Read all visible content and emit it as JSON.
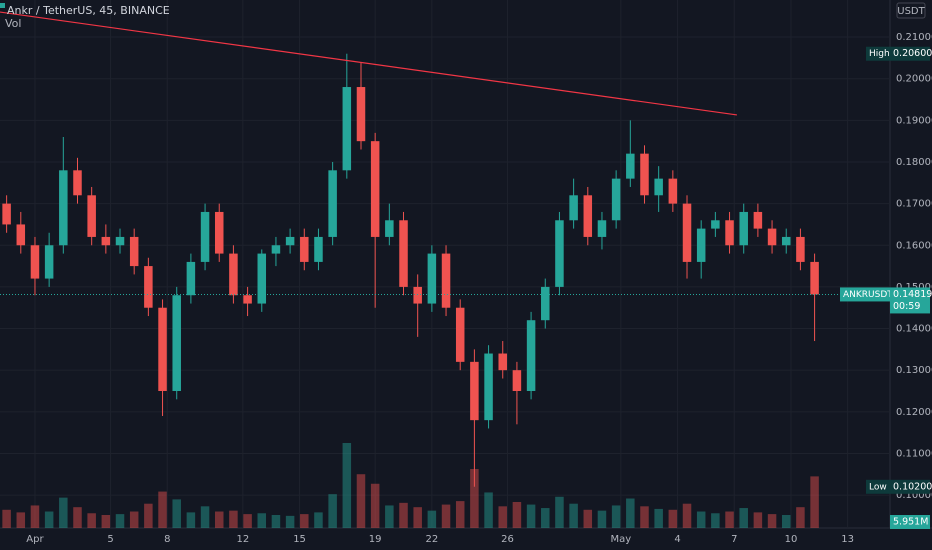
{
  "chart_data": {
    "type": "candlestick",
    "title": "Ankr / TetherUS, 45, BINANCE",
    "volume_title": "Vol",
    "currency": "USDT",
    "up_color": "#26a69a",
    "down_color": "#ef5350",
    "xlim": [
      -0.85,
      46.24
    ],
    "ylim": [
      0.0921,
      0.2189
    ],
    "xticks": [
      {
        "value": 1,
        "label": "Apr"
      },
      5,
      8,
      12,
      15,
      19,
      22,
      26,
      {
        "value": 32,
        "label": "May"
      },
      {
        "value": 35,
        "label": "4"
      },
      {
        "value": 38,
        "label": "7"
      },
      {
        "value": 41,
        "label": "10"
      },
      {
        "value": 44,
        "label": "13"
      }
    ],
    "yticks": [
      {
        "value": 0.1,
        "label": "0.10000"
      },
      {
        "value": 0.11,
        "label": "0.11000"
      },
      {
        "value": 0.12,
        "label": "0.12000"
      },
      {
        "value": 0.13,
        "label": "0.13000"
      },
      {
        "value": 0.14,
        "label": "0.14000"
      },
      {
        "value": 0.15,
        "label": "0.15000"
      },
      {
        "value": 0.16,
        "label": "0.16000"
      },
      {
        "value": 0.17,
        "label": "0.17000"
      },
      {
        "value": 0.18,
        "label": "0.18000"
      },
      {
        "value": 0.19,
        "label": "0.19000"
      },
      {
        "value": 0.2,
        "label": "0.20000"
      },
      {
        "value": 0.21,
        "label": "0.21000"
      }
    ],
    "x": [
      -0.5,
      0.25,
      1,
      1.75,
      2.5,
      3.25,
      4,
      4.75,
      5.5,
      6.25,
      7,
      7.75,
      8.5,
      9.25,
      10,
      10.75,
      11.5,
      12.25,
      13,
      13.75,
      14.5,
      15.25,
      16,
      16.75,
      17.5,
      18.25,
      19,
      19.75,
      20.5,
      21.25,
      22,
      22.75,
      23.5,
      24.25,
      25,
      25.75,
      26.5,
      27.25,
      28,
      28.75,
      29.5,
      30.25,
      31,
      31.75,
      32.5,
      33.25,
      34,
      34.75,
      35.5,
      36.25,
      37,
      37.75,
      38.5,
      39.25,
      40,
      40.75,
      41.5,
      42.25
    ],
    "open": [
      0.17,
      0.165,
      0.16,
      0.152,
      0.16,
      0.178,
      0.172,
      0.162,
      0.16,
      0.162,
      0.155,
      0.145,
      0.125,
      0.148,
      0.156,
      0.168,
      0.158,
      0.148,
      0.146,
      0.158,
      0.16,
      0.162,
      0.156,
      0.162,
      0.178,
      0.198,
      0.185,
      0.162,
      0.166,
      0.15,
      0.146,
      0.158,
      0.145,
      0.132,
      0.118,
      0.134,
      0.13,
      0.125,
      0.142,
      0.15,
      0.166,
      0.172,
      0.162,
      0.166,
      0.176,
      0.182,
      0.172,
      0.176,
      0.17,
      0.156,
      0.164,
      0.166,
      0.16,
      0.168,
      0.164,
      0.16,
      0.162,
      0.156
    ],
    "high": [
      0.172,
      0.168,
      0.162,
      0.163,
      0.186,
      0.181,
      0.174,
      0.165,
      0.164,
      0.164,
      0.157,
      0.147,
      0.15,
      0.158,
      0.17,
      0.17,
      0.16,
      0.15,
      0.159,
      0.162,
      0.164,
      0.164,
      0.164,
      0.18,
      0.206,
      0.204,
      0.187,
      0.17,
      0.168,
      0.153,
      0.16,
      0.16,
      0.147,
      0.135,
      0.136,
      0.137,
      0.132,
      0.144,
      0.152,
      0.168,
      0.176,
      0.174,
      0.168,
      0.178,
      0.19,
      0.184,
      0.179,
      0.178,
      0.172,
      0.166,
      0.168,
      0.168,
      0.17,
      0.17,
      0.166,
      0.164,
      0.164,
      0.158
    ],
    "low": [
      0.163,
      0.158,
      0.148,
      0.15,
      0.158,
      0.17,
      0.16,
      0.158,
      0.158,
      0.153,
      0.143,
      0.119,
      0.123,
      0.146,
      0.154,
      0.156,
      0.146,
      0.143,
      0.144,
      0.155,
      0.158,
      0.154,
      0.154,
      0.16,
      0.176,
      0.183,
      0.145,
      0.16,
      0.148,
      0.138,
      0.144,
      0.143,
      0.13,
      0.102,
      0.116,
      0.128,
      0.117,
      0.123,
      0.14,
      0.148,
      0.164,
      0.16,
      0.159,
      0.164,
      0.174,
      0.17,
      0.168,
      0.168,
      0.152,
      0.152,
      0.162,
      0.158,
      0.158,
      0.162,
      0.158,
      0.158,
      0.154,
      0.137
    ],
    "close": [
      0.165,
      0.16,
      0.152,
      0.16,
      0.178,
      0.172,
      0.162,
      0.16,
      0.162,
      0.155,
      0.145,
      0.125,
      0.148,
      0.156,
      0.168,
      0.158,
      0.148,
      0.146,
      0.158,
      0.16,
      0.162,
      0.156,
      0.162,
      0.178,
      0.198,
      0.185,
      0.162,
      0.166,
      0.15,
      0.146,
      0.158,
      0.145,
      0.132,
      0.118,
      0.134,
      0.13,
      0.125,
      0.142,
      0.15,
      0.166,
      0.172,
      0.162,
      0.166,
      0.176,
      0.182,
      0.172,
      0.176,
      0.17,
      0.156,
      0.164,
      0.166,
      0.16,
      0.168,
      0.164,
      0.16,
      0.162,
      0.156,
      0.14819
    ],
    "volume": [
      2100000,
      1800000,
      2600000,
      1900000,
      3500000,
      2400000,
      1700000,
      1500000,
      1600000,
      1900000,
      2800000,
      4200000,
      3300000,
      1800000,
      2500000,
      1900000,
      2000000,
      1600000,
      1700000,
      1500000,
      1400000,
      1600000,
      1800000,
      3900000,
      9800000,
      6200000,
      5100000,
      2600000,
      2900000,
      2400000,
      2000000,
      2700000,
      3100000,
      6800000,
      4100000,
      2500000,
      3000000,
      2700000,
      2300000,
      3600000,
      2800000,
      2100000,
      2000000,
      2600000,
      3400000,
      2500000,
      2200000,
      2100000,
      2800000,
      1900000,
      1700000,
      1900000,
      2300000,
      1800000,
      1600000,
      1500000,
      2400000,
      5951000
    ],
    "last_volume_label": "5.951M",
    "markers": [
      {
        "name": "High",
        "value": 0.206,
        "label": "0.20600"
      },
      {
        "name": "Low",
        "value": 0.102,
        "label": "0.10200"
      }
    ],
    "last_price": {
      "name": "ANKRUSDT",
      "value": 0.14819,
      "timer": "00:59"
    },
    "trendline": {
      "x": [
        -0.85,
        38.14
      ],
      "y": [
        0.216,
        0.1913
      ],
      "color": "#f23645"
    }
  }
}
